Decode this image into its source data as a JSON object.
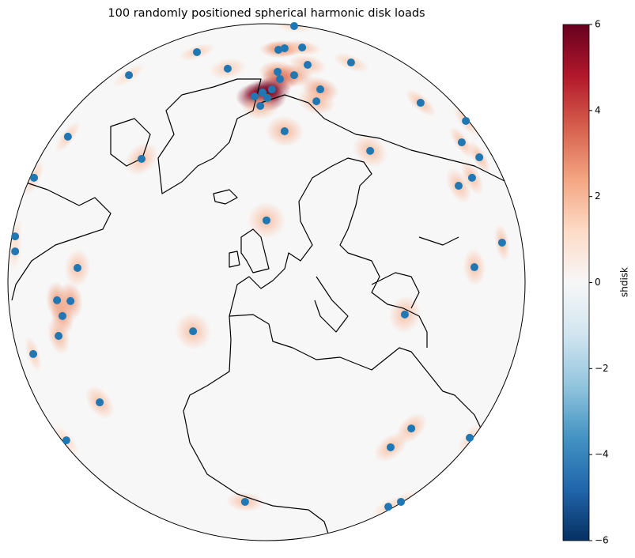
{
  "chart_data": {
    "type": "scatter",
    "title": "100 randomly positioned spherical harmonic disk loads",
    "point_color": "#1f77b4",
    "xlim": [
      -1,
      1
    ],
    "ylim": [
      -1,
      1
    ],
    "x": [
      0.107,
      -0.269,
      0.046,
      0.07,
      0.138,
      -0.532,
      -0.15,
      0.327,
      0.159,
      0.043,
      0.107,
      0.052,
      0.021,
      -0.015,
      -0.046,
      0.003,
      -0.024,
      0.208,
      0.193,
      0.596,
      0.771,
      0.07,
      -0.768,
      -0.483,
      0.755,
      0.401,
      0.823,
      -0.899,
      0.795,
      0.743,
      0.0,
      -0.972,
      0.911,
      -0.972,
      -0.731,
      0.804,
      -0.81,
      -0.758,
      -0.789,
      0.535,
      -0.284,
      -0.804,
      -0.902,
      -0.645,
      0.56,
      0.48,
      0.786,
      -0.774,
      -0.083,
      0.471,
      0.52
    ],
    "y": [
      0.991,
      0.89,
      0.899,
      0.905,
      0.908,
      0.801,
      0.826,
      0.85,
      0.841,
      0.814,
      0.801,
      0.786,
      0.746,
      0.734,
      0.719,
      0.713,
      0.682,
      0.746,
      0.7,
      0.694,
      0.624,
      0.584,
      0.563,
      0.477,
      0.541,
      0.508,
      0.483,
      0.404,
      0.404,
      0.373,
      0.239,
      0.177,
      0.153,
      0.119,
      0.055,
      0.058,
      -0.07,
      -0.073,
      -0.131,
      -0.125,
      -0.19,
      -0.208,
      -0.278,
      -0.465,
      -0.566,
      -0.639,
      -0.602,
      -0.612,
      -0.85,
      -0.869,
      -0.85
    ],
    "values": [
      1.2,
      1.5,
      2.5,
      2.5,
      1.8,
      1.2,
      1.5,
      1.5,
      1.8,
      2.5,
      2.5,
      3.5,
      5.5,
      6,
      5.5,
      5.5,
      2,
      2.5,
      2,
      1.8,
      1.5,
      2,
      1.5,
      1.8,
      1.8,
      1.8,
      1.8,
      1.5,
      1.8,
      1.8,
      1.8,
      1,
      1.8,
      1,
      1.8,
      1.8,
      2.5,
      2.5,
      2.5,
      1.8,
      1.8,
      2,
      1.5,
      1.8,
      1.8,
      1.8,
      1.2,
      1.2,
      1.8,
      1.2,
      1.2
    ],
    "colorbar": {
      "label": "shdisk",
      "lim": [
        -6,
        6
      ],
      "ticks": [
        -6,
        -4,
        -2,
        0,
        2,
        4,
        6
      ],
      "tick_labels": [
        "−6",
        "−4",
        "−2",
        "0",
        "2",
        "4",
        "6"
      ],
      "colormap": [
        "#053061",
        "#2166ac",
        "#4393c3",
        "#92c5de",
        "#d1e5f0",
        "#f7f7f7",
        "#fddbc7",
        "#f4a582",
        "#d6604d",
        "#b2182b",
        "#67001f"
      ]
    }
  }
}
